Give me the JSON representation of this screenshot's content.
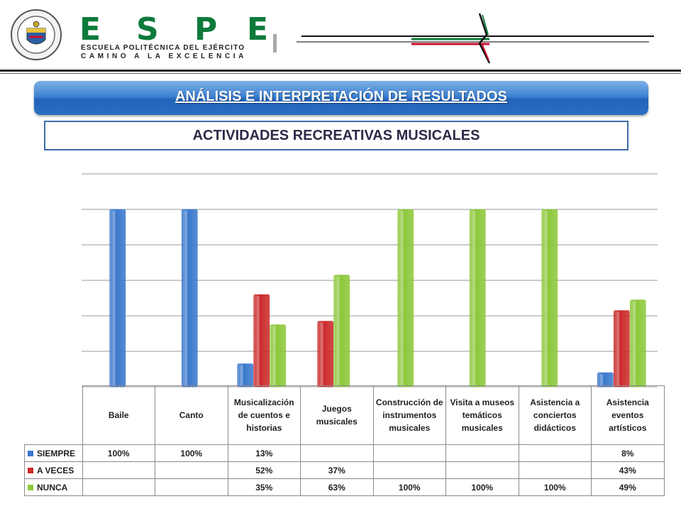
{
  "header": {
    "logo_letters": [
      "E",
      "S",
      "P",
      "E"
    ],
    "logo_line1": "ESCUELA POLITÉCNICA DEL EJÉRCITO",
    "logo_line2": "CAMINO A LA EXCELENCIA",
    "seal_ring_top": "ESCUELA POLITÉCNICA DEL EJÉRCITO",
    "seal_ring_bottom": "ECUADOR",
    "colors": {
      "green": "#0d7a3a",
      "red": "#c8102e"
    }
  },
  "banner": {
    "title": "ANÁLISIS E INTERPRETACIÓN  DE RESULTADOS"
  },
  "subtitle": "ACTIVIDADES RECREATIVAS MUSICALES",
  "chart_data": {
    "type": "bar",
    "categories": [
      "Baile",
      "Canto",
      "Musicalización de cuentos e historias",
      "Juegos musicales",
      "Construcción de instrumentos musicales",
      "Visita a museos temáticos musicales",
      "Asistencia a conciertos didácticos",
      "Asistencia eventos artísticos"
    ],
    "series": [
      {
        "name": "SIEMPRE",
        "color": "#3a78cc",
        "values": [
          100,
          100,
          13,
          null,
          null,
          null,
          null,
          8
        ],
        "labels": [
          "100%",
          "100%",
          "13%",
          "",
          "",
          "",
          "",
          "8%"
        ]
      },
      {
        "name": "A VECES",
        "color": "#cc2a2a",
        "values": [
          null,
          null,
          52,
          37,
          null,
          null,
          null,
          43
        ],
        "labels": [
          "",
          "",
          "52%",
          "37%",
          "",
          "",
          "",
          "43%"
        ]
      },
      {
        "name": "NUNCA",
        "color": "#8cc83a",
        "values": [
          null,
          null,
          35,
          63,
          100,
          100,
          100,
          49
        ],
        "labels": [
          "",
          "",
          "35%",
          "63%",
          "100%",
          "100%",
          "100%",
          "49%"
        ]
      }
    ],
    "ylim": [
      0,
      120
    ],
    "grid": true,
    "legend": "table-left",
    "title": "",
    "xlabel": "",
    "ylabel": ""
  }
}
